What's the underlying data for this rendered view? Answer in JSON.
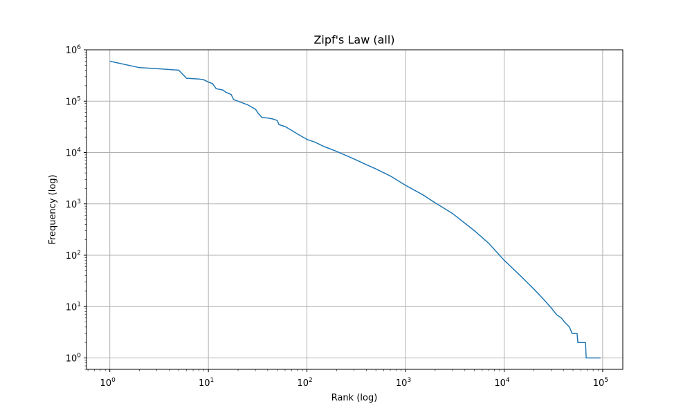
{
  "chart_data": {
    "type": "line",
    "title": "Zipf's Law (all)",
    "xlabel": "Rank (log)",
    "ylabel": "Frequency (log)",
    "xscale": "log",
    "yscale": "log",
    "xlim": [
      0.58,
      160000
    ],
    "ylim": [
      0.6,
      1000000
    ],
    "grid": true,
    "line_color": "#1f77b4",
    "x_ticks": [
      {
        "base": "10",
        "exp": "0",
        "value": 1
      },
      {
        "base": "10",
        "exp": "1",
        "value": 10
      },
      {
        "base": "10",
        "exp": "2",
        "value": 100
      },
      {
        "base": "10",
        "exp": "3",
        "value": 1000
      },
      {
        "base": "10",
        "exp": "4",
        "value": 10000
      },
      {
        "base": "10",
        "exp": "5",
        "value": 100000
      }
    ],
    "y_ticks": [
      {
        "base": "10",
        "exp": "0",
        "value": 1
      },
      {
        "base": "10",
        "exp": "1",
        "value": 10
      },
      {
        "base": "10",
        "exp": "2",
        "value": 100
      },
      {
        "base": "10",
        "exp": "3",
        "value": 1000
      },
      {
        "base": "10",
        "exp": "4",
        "value": 10000
      },
      {
        "base": "10",
        "exp": "5",
        "value": 100000
      },
      {
        "base": "10",
        "exp": "6",
        "value": 1000000
      }
    ],
    "series": [
      {
        "points": [
          [
            1,
            600000
          ],
          [
            2,
            450000
          ],
          [
            3,
            430000
          ],
          [
            5,
            400000
          ],
          [
            6,
            280000
          ],
          [
            8,
            270000
          ],
          [
            9,
            260000
          ],
          [
            10,
            235000
          ],
          [
            11,
            220000
          ],
          [
            12,
            175000
          ],
          [
            14,
            165000
          ],
          [
            15,
            150000
          ],
          [
            17,
            135000
          ],
          [
            18,
            108000
          ],
          [
            20,
            100000
          ],
          [
            25,
            85000
          ],
          [
            30,
            70000
          ],
          [
            32,
            58000
          ],
          [
            35,
            48000
          ],
          [
            40,
            47000
          ],
          [
            45,
            45000
          ],
          [
            50,
            42000
          ],
          [
            52,
            35000
          ],
          [
            60,
            32000
          ],
          [
            70,
            27000
          ],
          [
            80,
            23000
          ],
          [
            100,
            18000
          ],
          [
            120,
            16000
          ],
          [
            150,
            13000
          ],
          [
            200,
            10500
          ],
          [
            300,
            7500
          ],
          [
            400,
            5800
          ],
          [
            500,
            4800
          ],
          [
            700,
            3500
          ],
          [
            1000,
            2300
          ],
          [
            1500,
            1500
          ],
          [
            2000,
            1050
          ],
          [
            3000,
            650
          ],
          [
            5000,
            300
          ],
          [
            7000,
            170
          ],
          [
            10000,
            80
          ],
          [
            15000,
            38
          ],
          [
            20000,
            22
          ],
          [
            25000,
            14
          ],
          [
            30000,
            9.5
          ],
          [
            34000,
            7
          ],
          [
            38000,
            6
          ],
          [
            41000,
            5
          ],
          [
            46000,
            4
          ],
          [
            49000,
            3
          ],
          [
            55000,
            3
          ],
          [
            56000,
            2
          ],
          [
            67000,
            2
          ],
          [
            68000,
            1
          ],
          [
            95000,
            1
          ]
        ]
      }
    ]
  }
}
